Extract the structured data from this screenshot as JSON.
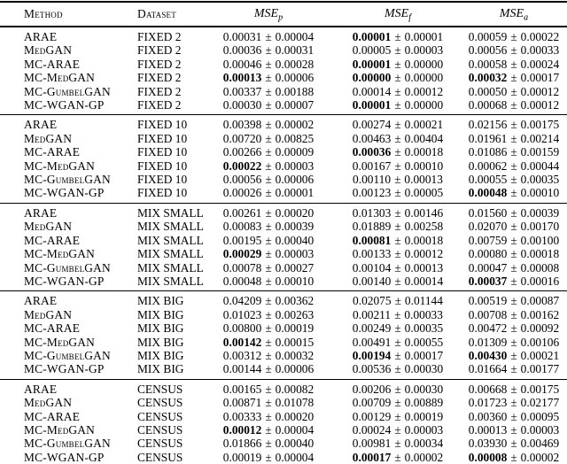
{
  "table": {
    "plus_minus": "±",
    "header": {
      "method": "Method",
      "dataset": "Dataset",
      "metrics": [
        {
          "name": "MSE",
          "sub": "p"
        },
        {
          "name": "MSE",
          "sub": "f"
        },
        {
          "name": "MSE",
          "sub": "a"
        }
      ]
    },
    "groups": [
      {
        "dataset": "FIXED 2",
        "rows": [
          {
            "method": "ARAE",
            "cells": [
              {
                "m": "0.00031",
                "e": "0.00004",
                "b": false
              },
              {
                "m": "0.00001",
                "e": "0.00001",
                "b": true
              },
              {
                "m": "0.00059",
                "e": "0.00022",
                "b": false
              }
            ]
          },
          {
            "method": "MedGAN",
            "cells": [
              {
                "m": "0.00036",
                "e": "0.00031",
                "b": false
              },
              {
                "m": "0.00005",
                "e": "0.00003",
                "b": false
              },
              {
                "m": "0.00056",
                "e": "0.00033",
                "b": false
              }
            ]
          },
          {
            "method": "MC-ARAE",
            "cells": [
              {
                "m": "0.00046",
                "e": "0.00028",
                "b": false
              },
              {
                "m": "0.00001",
                "e": "0.00000",
                "b": true
              },
              {
                "m": "0.00058",
                "e": "0.00024",
                "b": false
              }
            ]
          },
          {
            "method": "MC-MedGAN",
            "cells": [
              {
                "m": "0.00013",
                "e": "0.00006",
                "b": true
              },
              {
                "m": "0.00000",
                "e": "0.00000",
                "b": true
              },
              {
                "m": "0.00032",
                "e": "0.00017",
                "b": true
              }
            ]
          },
          {
            "method": "MC-GumbelGAN",
            "cells": [
              {
                "m": "0.00337",
                "e": "0.00188",
                "b": false
              },
              {
                "m": "0.00014",
                "e": "0.00012",
                "b": false
              },
              {
                "m": "0.00050",
                "e": "0.00012",
                "b": false
              }
            ]
          },
          {
            "method": "MC-WGAN-GP",
            "cells": [
              {
                "m": "0.00030",
                "e": "0.00007",
                "b": false
              },
              {
                "m": "0.00001",
                "e": "0.00000",
                "b": true
              },
              {
                "m": "0.00068",
                "e": "0.00012",
                "b": false
              }
            ]
          }
        ]
      },
      {
        "dataset": "FIXED 10",
        "rows": [
          {
            "method": "ARAE",
            "cells": [
              {
                "m": "0.00398",
                "e": "0.00002",
                "b": false
              },
              {
                "m": "0.00274",
                "e": "0.00021",
                "b": false
              },
              {
                "m": "0.02156",
                "e": "0.00175",
                "b": false
              }
            ]
          },
          {
            "method": "MedGAN",
            "cells": [
              {
                "m": "0.00720",
                "e": "0.00825",
                "b": false
              },
              {
                "m": "0.00463",
                "e": "0.00404",
                "b": false
              },
              {
                "m": "0.01961",
                "e": "0.00214",
                "b": false
              }
            ]
          },
          {
            "method": "MC-ARAE",
            "cells": [
              {
                "m": "0.00266",
                "e": "0.00009",
                "b": false
              },
              {
                "m": "0.00036",
                "e": "0.00018",
                "b": true
              },
              {
                "m": "0.01086",
                "e": "0.00159",
                "b": false
              }
            ]
          },
          {
            "method": "MC-MedGAN",
            "cells": [
              {
                "m": "0.00022",
                "e": "0.00003",
                "b": true
              },
              {
                "m": "0.00167",
                "e": "0.00010",
                "b": false
              },
              {
                "m": "0.00062",
                "e": "0.00044",
                "b": false
              }
            ]
          },
          {
            "method": "MC-GumbelGAN",
            "cells": [
              {
                "m": "0.00056",
                "e": "0.00006",
                "b": false
              },
              {
                "m": "0.00110",
                "e": "0.00013",
                "b": false
              },
              {
                "m": "0.00055",
                "e": "0.00035",
                "b": false
              }
            ]
          },
          {
            "method": "MC-WGAN-GP",
            "cells": [
              {
                "m": "0.00026",
                "e": "0.00001",
                "b": false
              },
              {
                "m": "0.00123",
                "e": "0.00005",
                "b": false
              },
              {
                "m": "0.00048",
                "e": "0.00010",
                "b": true
              }
            ]
          }
        ]
      },
      {
        "dataset": "MIX SMALL",
        "rows": [
          {
            "method": "ARAE",
            "cells": [
              {
                "m": "0.00261",
                "e": "0.00020",
                "b": false
              },
              {
                "m": "0.01303",
                "e": "0.00146",
                "b": false
              },
              {
                "m": "0.01560",
                "e": "0.00039",
                "b": false
              }
            ]
          },
          {
            "method": "MedGAN",
            "cells": [
              {
                "m": "0.00083",
                "e": "0.00039",
                "b": false
              },
              {
                "m": "0.01889",
                "e": "0.00258",
                "b": false
              },
              {
                "m": "0.02070",
                "e": "0.00170",
                "b": false
              }
            ]
          },
          {
            "method": "MC-ARAE",
            "cells": [
              {
                "m": "0.00195",
                "e": "0.00040",
                "b": false
              },
              {
                "m": "0.00081",
                "e": "0.00018",
                "b": true
              },
              {
                "m": "0.00759",
                "e": "0.00100",
                "b": false
              }
            ]
          },
          {
            "method": "MC-MedGAN",
            "cells": [
              {
                "m": "0.00029",
                "e": "0.00003",
                "b": true
              },
              {
                "m": "0.00133",
                "e": "0.00012",
                "b": false
              },
              {
                "m": "0.00080",
                "e": "0.00018",
                "b": false
              }
            ]
          },
          {
            "method": "MC-GumbelGAN",
            "cells": [
              {
                "m": "0.00078",
                "e": "0.00027",
                "b": false
              },
              {
                "m": "0.00104",
                "e": "0.00013",
                "b": false
              },
              {
                "m": "0.00047",
                "e": "0.00008",
                "b": false
              }
            ]
          },
          {
            "method": "MC-WGAN-GP",
            "cells": [
              {
                "m": "0.00048",
                "e": "0.00010",
                "b": false
              },
              {
                "m": "0.00140",
                "e": "0.00014",
                "b": false
              },
              {
                "m": "0.00037",
                "e": "0.00016",
                "b": true
              }
            ]
          }
        ]
      },
      {
        "dataset": "MIX BIG",
        "rows": [
          {
            "method": "ARAE",
            "cells": [
              {
                "m": "0.04209",
                "e": "0.00362",
                "b": false
              },
              {
                "m": "0.02075",
                "e": "0.01144",
                "b": false
              },
              {
                "m": "0.00519",
                "e": "0.00087",
                "b": false
              }
            ]
          },
          {
            "method": "MedGAN",
            "cells": [
              {
                "m": "0.01023",
                "e": "0.00263",
                "b": false
              },
              {
                "m": "0.00211",
                "e": "0.00033",
                "b": false
              },
              {
                "m": "0.00708",
                "e": "0.00162",
                "b": false
              }
            ]
          },
          {
            "method": "MC-ARAE",
            "cells": [
              {
                "m": "0.00800",
                "e": "0.00019",
                "b": false
              },
              {
                "m": "0.00249",
                "e": "0.00035",
                "b": false
              },
              {
                "m": "0.00472",
                "e": "0.00092",
                "b": false
              }
            ]
          },
          {
            "method": "MC-MedGAN",
            "cells": [
              {
                "m": "0.00142",
                "e": "0.00015",
                "b": true
              },
              {
                "m": "0.00491",
                "e": "0.00055",
                "b": false
              },
              {
                "m": "0.01309",
                "e": "0.00106",
                "b": false
              }
            ]
          },
          {
            "method": "MC-GumbelGAN",
            "cells": [
              {
                "m": "0.00312",
                "e": "0.00032",
                "b": false
              },
              {
                "m": "0.00194",
                "e": "0.00017",
                "b": true
              },
              {
                "m": "0.00430",
                "e": "0.00021",
                "b": true
              }
            ]
          },
          {
            "method": "MC-WGAN-GP",
            "cells": [
              {
                "m": "0.00144",
                "e": "0.00006",
                "b": false
              },
              {
                "m": "0.00536",
                "e": "0.00030",
                "b": false
              },
              {
                "m": "0.01664",
                "e": "0.00177",
                "b": false
              }
            ]
          }
        ]
      },
      {
        "dataset": "CENSUS",
        "rows": [
          {
            "method": "ARAE",
            "cells": [
              {
                "m": "0.00165",
                "e": "0.00082",
                "b": false
              },
              {
                "m": "0.00206",
                "e": "0.00030",
                "b": false
              },
              {
                "m": "0.00668",
                "e": "0.00175",
                "b": false
              }
            ]
          },
          {
            "method": "MedGAN",
            "cells": [
              {
                "m": "0.00871",
                "e": "0.01078",
                "b": false
              },
              {
                "m": "0.00709",
                "e": "0.00889",
                "b": false
              },
              {
                "m": "0.01723",
                "e": "0.02177",
                "b": false
              }
            ]
          },
          {
            "method": "MC-ARAE",
            "cells": [
              {
                "m": "0.00333",
                "e": "0.00020",
                "b": false
              },
              {
                "m": "0.00129",
                "e": "0.00019",
                "b": false
              },
              {
                "m": "0.00360",
                "e": "0.00095",
                "b": false
              }
            ]
          },
          {
            "method": "MC-MedGAN",
            "cells": [
              {
                "m": "0.00012",
                "e": "0.00004",
                "b": true
              },
              {
                "m": "0.00024",
                "e": "0.00003",
                "b": false
              },
              {
                "m": "0.00013",
                "e": "0.00003",
                "b": false
              }
            ]
          },
          {
            "method": "MC-GumbelGAN",
            "cells": [
              {
                "m": "0.01866",
                "e": "0.00040",
                "b": false
              },
              {
                "m": "0.00981",
                "e": "0.00034",
                "b": false
              },
              {
                "m": "0.03930",
                "e": "0.00469",
                "b": false
              }
            ]
          },
          {
            "method": "MC-WGAN-GP",
            "cells": [
              {
                "m": "0.00019",
                "e": "0.00004",
                "b": false
              },
              {
                "m": "0.00017",
                "e": "0.00002",
                "b": true
              },
              {
                "m": "0.00008",
                "e": "0.00002",
                "b": true
              }
            ]
          }
        ]
      }
    ]
  }
}
